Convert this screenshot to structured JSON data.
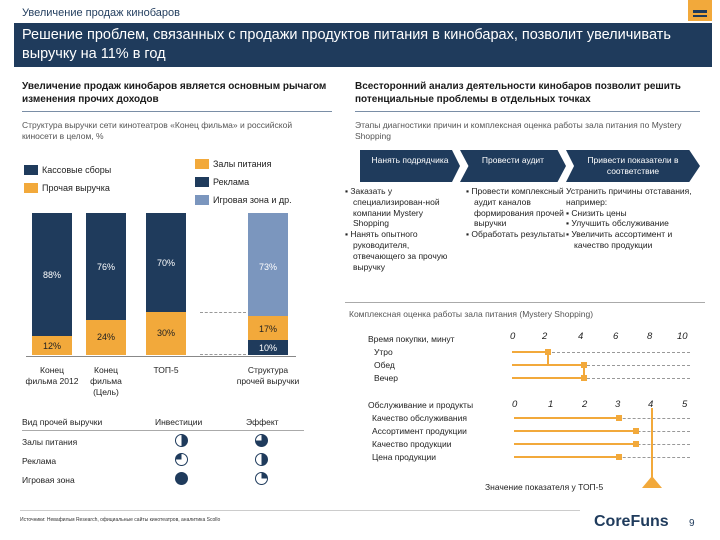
{
  "header": {
    "topline": "Увеличение продаж кинобаров",
    "title": "Решение проблем, связанных с продажи продуктов питания в кинобарах, позволит увеличивать выручку на 11% в год"
  },
  "left": {
    "heading": "Увеличение продаж кинобаров является основным рычагом изменения прочих доходов",
    "subtitle": "Структура выручки сети кинотеатров «Конец фильма» и российской киносети в целом, %",
    "legend": {
      "box_office": "Кассовые сборы",
      "other_revenue": "Прочая выручка",
      "food": "Залы питания",
      "ads": "Реклама",
      "games": "Игровая зона и др."
    },
    "colors": {
      "navy": "#1f3b5c",
      "orange": "#f2a93b",
      "steel": "#7b96be",
      "gray": "#d9d9d9"
    },
    "categories": [
      "Конец фильма 2012",
      "Конец фильма (Цель)",
      "ТОП-5",
      "Структура прочей выручки"
    ],
    "values": {
      "c1_top": "88%",
      "c1_bottom": "12%",
      "c2_top": "76%",
      "c2_bottom": "24%",
      "c3_top": "70%",
      "c3_bottom": "30%",
      "c4_top": "73%",
      "c4_mid": "17%",
      "c4_bottom": "10%"
    },
    "table": {
      "col_label": "Вид прочей выручки",
      "col_invest": "Инвестиции",
      "col_effect": "Эффект",
      "rows": [
        "Залы питания",
        "Реклама",
        "Игровая зона"
      ]
    }
  },
  "right": {
    "heading": "Всесторонний анализ деятельности кинобаров позволит решить потенциальные проблемы в отдельных точках",
    "subtitle": "Этапы диагностики причин и комплексная оценка работы зала питания по Mystery Shopping",
    "steps": [
      {
        "title": "Нанять подрядчика",
        "bullets": [
          "Заказать у специализирован-ной компании Mystery Shopping",
          "Нанять опытного руководителя, отвечающего за прочую выручку"
        ]
      },
      {
        "title": "Провести аудит",
        "bullets": [
          "Провести комплексный аудит каналов формирования прочей выручки",
          "Обработать результаты"
        ]
      },
      {
        "title": "Привести показатели в соответствие",
        "intro": "Устранить причины отставания, например:",
        "bullets": [
          "Снизить цены",
          "Улучшить обслуживание",
          "Увеличить ассортимент и качество продукции"
        ]
      }
    ],
    "eval_title": "Комплексная оценка работы зала питания (Mystery Shopping)",
    "group1": {
      "title": "Время покупки, минут",
      "ticks": [
        "0",
        "2",
        "4",
        "6",
        "8",
        "10"
      ],
      "rows": [
        "Утро",
        "Обед",
        "Вечер"
      ]
    },
    "group2": {
      "title": "Обслуживание и продукты",
      "ticks": [
        "0",
        "1",
        "2",
        "3",
        "4",
        "5"
      ],
      "rows": [
        "Качество обслуживания",
        "Ассортимент продукции",
        "Качество продукции",
        "Цена продукции"
      ]
    },
    "top5_label": "Значение показателя у ТОП-5"
  },
  "footer": {
    "source": "Источники: Невафильм Research, официальные сайты кинотеатров, аналитика Scollo",
    "brand": "CoreFuns",
    "page": "9"
  }
}
